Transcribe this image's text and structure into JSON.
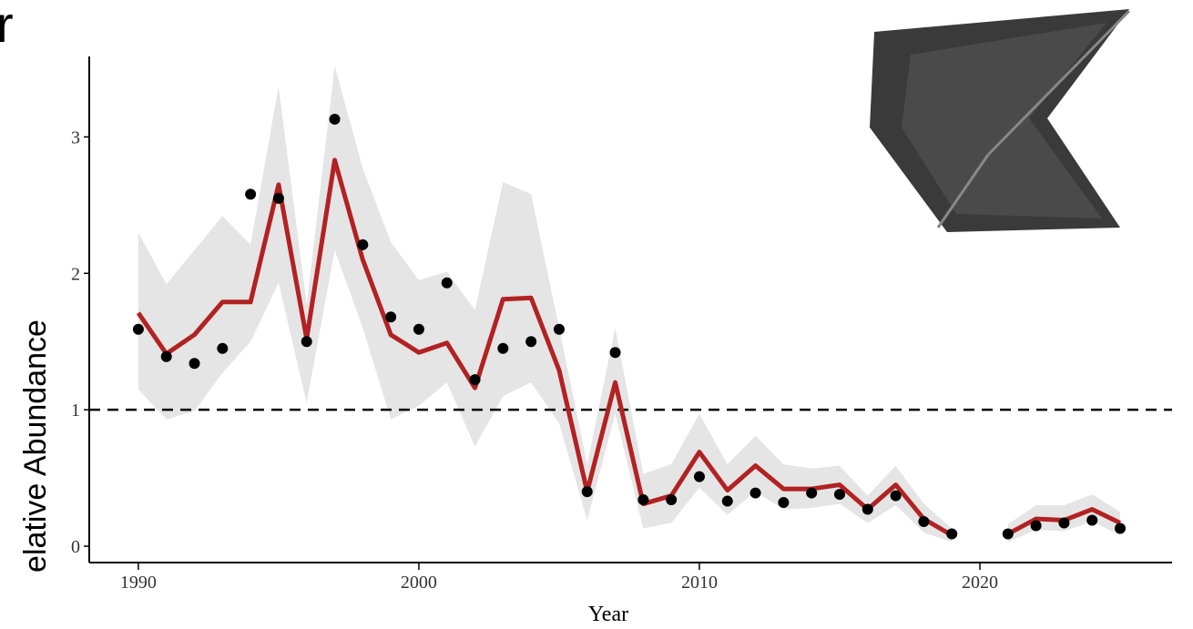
{
  "chart_data": {
    "type": "line",
    "title": "r",
    "x_label": "Year",
    "y_label": "elative Abundance",
    "x": [
      1990,
      1991,
      1992,
      1993,
      1994,
      1995,
      1996,
      1997,
      1998,
      1999,
      2000,
      2001,
      2002,
      2003,
      2004,
      2005,
      2006,
      2007,
      2008,
      2009,
      2010,
      2011,
      2012,
      2013,
      2014,
      2015,
      2016,
      2017,
      2018,
      2019,
      2020,
      2021,
      2022,
      2023,
      2024,
      2025
    ],
    "xlim": [
      1988.25,
      2026.85
    ],
    "xticks": [
      1990,
      2000,
      2010,
      2020
    ],
    "ylim": [
      -0.12,
      3.59
    ],
    "yticks": [
      0,
      1,
      2,
      3
    ],
    "reference_line": {
      "value": 1,
      "style": "dashed",
      "color": "#000000"
    },
    "ribbon": {
      "color": "#e5e5e5",
      "lower": [
        1.15,
        0.93,
        0.99,
        1.27,
        1.5,
        1.93,
        1.05,
        2.17,
        1.6,
        0.93,
        1.03,
        1.2,
        0.73,
        1.1,
        1.2,
        0.9,
        0.19,
        0.97,
        0.13,
        0.17,
        0.43,
        0.23,
        0.4,
        0.27,
        0.28,
        0.31,
        0.17,
        0.3,
        0.1,
        0.03,
        null,
        0.03,
        0.12,
        0.11,
        0.18,
        0.08
      ],
      "upper": [
        2.3,
        1.92,
        2.17,
        2.42,
        2.21,
        3.37,
        1.77,
        3.52,
        2.77,
        2.23,
        1.95,
        2.01,
        1.73,
        2.67,
        2.58,
        1.6,
        0.6,
        1.6,
        0.53,
        0.6,
        0.97,
        0.6,
        0.81,
        0.6,
        0.57,
        0.59,
        0.37,
        0.59,
        0.31,
        0.13,
        null,
        0.16,
        0.3,
        0.3,
        0.38,
        0.25
      ]
    },
    "series": [
      {
        "kind": "line",
        "color": "#b22222",
        "values": [
          1.71,
          1.41,
          1.55,
          1.79,
          1.79,
          2.65,
          1.52,
          2.83,
          2.1,
          1.55,
          1.42,
          1.49,
          1.16,
          1.81,
          1.82,
          1.29,
          0.4,
          1.2,
          0.31,
          0.37,
          0.69,
          0.41,
          0.59,
          0.42,
          0.42,
          0.45,
          0.27,
          0.45,
          0.2,
          0.08,
          null,
          0.09,
          0.2,
          0.19,
          0.27,
          0.17
        ]
      },
      {
        "kind": "points",
        "color": "#000000",
        "values": [
          1.59,
          1.39,
          1.34,
          1.45,
          2.58,
          2.55,
          1.5,
          3.13,
          2.21,
          1.68,
          1.59,
          1.93,
          1.22,
          1.45,
          1.5,
          1.59,
          0.4,
          1.42,
          0.34,
          0.34,
          0.51,
          0.33,
          0.39,
          0.32,
          0.39,
          0.38,
          0.27,
          0.37,
          0.18,
          0.09,
          null,
          0.09,
          0.15,
          0.17,
          0.19,
          0.13
        ]
      }
    ]
  }
}
